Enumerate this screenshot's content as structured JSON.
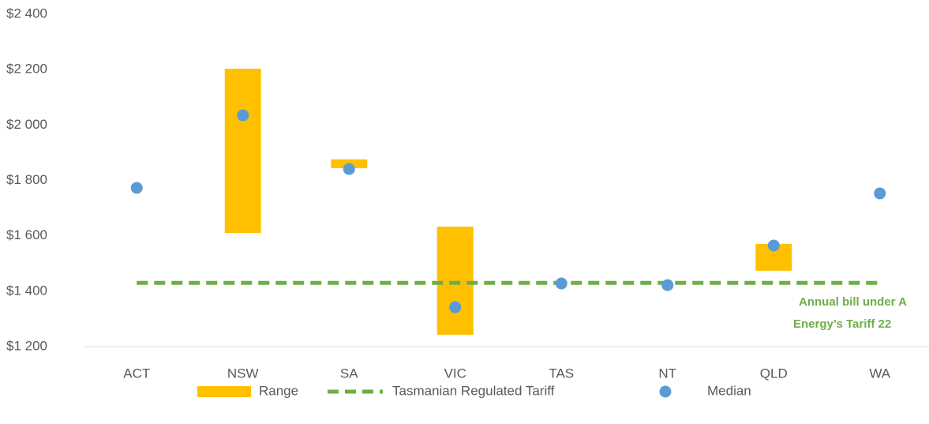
{
  "chart_data": {
    "type": "range",
    "categories": [
      "ACT",
      "NSW",
      "SA",
      "VIC",
      "TAS",
      "NT",
      "QLD",
      "WA"
    ],
    "series": [
      {
        "name": "Range",
        "kind": "range",
        "color": "#ffc000",
        "low": [
          null,
          1610,
          1844,
          1243,
          null,
          null,
          1474,
          null
        ],
        "high": [
          null,
          2203,
          1876,
          1633,
          null,
          null,
          1571,
          null
        ]
      },
      {
        "name": "Tasmanian Regulated Tariff",
        "kind": "dashed-line",
        "color": "#70ad47",
        "values": [
          1430,
          1430,
          1430,
          1430,
          1430,
          1430,
          1430,
          1430
        ]
      },
      {
        "name": "Median",
        "kind": "dot",
        "color": "#5b9bd5",
        "values": [
          1773,
          2035,
          1841,
          1342,
          1428,
          1422,
          1565,
          1753
        ]
      }
    ],
    "ylim": [
      1200,
      2400
    ],
    "yticks": [
      {
        "value": 1200,
        "label": "$1 200"
      },
      {
        "value": 1400,
        "label": "$1 400"
      },
      {
        "value": 1600,
        "label": "$1 600"
      },
      {
        "value": 1800,
        "label": "$1 800"
      },
      {
        "value": 2000,
        "label": "$2 000"
      },
      {
        "value": 2200,
        "label": "$2 200"
      },
      {
        "value": 2400,
        "label": "$2 400"
      }
    ],
    "annotation": [
      "Annual bill under A",
      "Energy’s Tariff 22"
    ],
    "grid": false,
    "legend": "bottom"
  }
}
